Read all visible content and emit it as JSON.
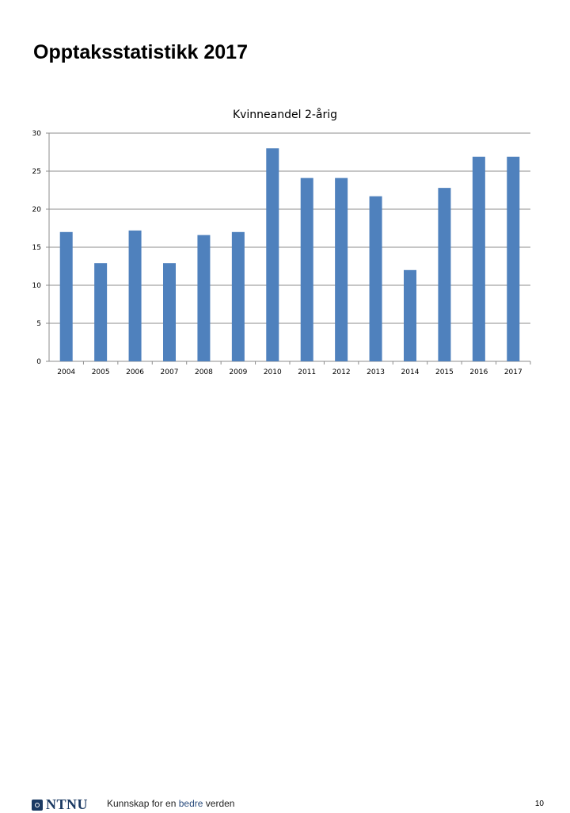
{
  "slide": {
    "title": "Opptaksstatistikk 2017"
  },
  "chart_data": {
    "type": "bar",
    "title": "Kvinneandel 2-årig",
    "xlabel": "",
    "ylabel": "",
    "categories": [
      "2004",
      "2005",
      "2006",
      "2007",
      "2008",
      "2009",
      "2010",
      "2011",
      "2012",
      "2013",
      "2014",
      "2015",
      "2016",
      "2017"
    ],
    "values": [
      17,
      12.9,
      17.2,
      12.9,
      16.6,
      17,
      28,
      24.1,
      24.1,
      21.7,
      12,
      22.8,
      26.9,
      26.9
    ],
    "ylim": [
      0,
      30
    ],
    "yticks": [
      0,
      5,
      10,
      15,
      20,
      25,
      30
    ],
    "grid": true,
    "legend": "none",
    "bar_color": "#4f81bd",
    "grid_color": "#8c8c8c"
  },
  "footer": {
    "logo_text": "NTNU",
    "tagline_before": "Kunnskap for en ",
    "tagline_accent": "bedre",
    "tagline_after": " verden",
    "page_number": "10"
  }
}
